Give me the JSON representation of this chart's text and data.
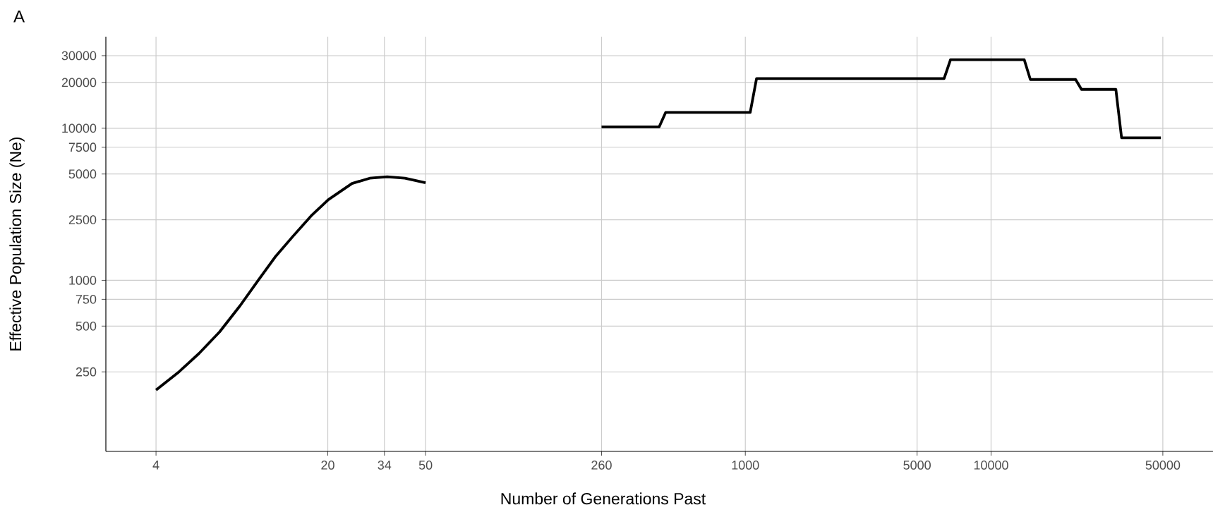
{
  "chart_data": {
    "type": "line",
    "xlabel": "Number of Generations Past",
    "ylabel": "Effective Population Size (Ne)",
    "annotations": [
      "A"
    ],
    "log": "xy",
    "grid": true,
    "marker": "none",
    "line_style": "solid",
    "xlim": [
      2.5,
      80000
    ],
    "ylim": [
      75,
      40000
    ],
    "xticks": [
      4,
      20,
      34,
      50,
      260,
      1000,
      5000,
      10000,
      50000
    ],
    "yticks": [
      250,
      500,
      750,
      1000,
      2500,
      5000,
      7500,
      10000,
      20000,
      30000
    ],
    "series": [
      {
        "color": "#000000",
        "x": [
          4,
          4.96,
          5.98,
          7.26,
          8.8,
          10.4,
          12.2,
          14.4,
          17.1,
          20.1,
          25.1,
          29.6,
          34.9,
          41.2,
          50
        ],
        "values": [
          190,
          250,
          330,
          458,
          682,
          995,
          1420,
          1940,
          2650,
          3390,
          4330,
          4690,
          4790,
          4690,
          4380
        ]
      },
      {
        "color": "#000000",
        "x": [
          260,
          446,
          474,
          1047,
          1111,
          6440,
          6840,
          13650,
          14450,
          22080,
          23330,
          32200,
          33970,
          49100
        ],
        "values": [
          10200,
          10200,
          12700,
          12700,
          21200,
          21200,
          28200,
          28200,
          20900,
          20900,
          18000,
          18000,
          8650,
          8650
        ]
      }
    ]
  }
}
